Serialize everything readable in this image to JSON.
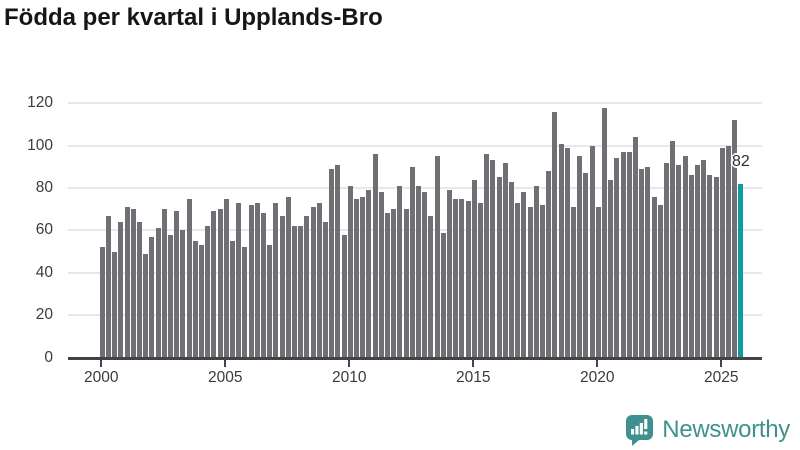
{
  "title": "Födda per kvartal i Upplands-Bro",
  "chart_data": {
    "type": "bar",
    "title": "Födda per kvartal i Upplands-Bro",
    "x_start": "2000-Q1",
    "x_end": "2025-Q4",
    "period": "quarterly",
    "x_tick_years": [
      2000,
      2005,
      2010,
      2015,
      2020,
      2025
    ],
    "x_tick_labels": [
      "2000",
      "2005",
      "2010",
      "2015",
      "2020",
      "2025"
    ],
    "y_ticks": [
      0,
      20,
      40,
      60,
      80,
      100,
      120
    ],
    "ylim": [
      0,
      120
    ],
    "grid": "horizontal",
    "legend": "none",
    "bar_color": "#706f73",
    "series": [
      {
        "name": "Födda",
        "values": [
          52,
          67,
          50,
          64,
          71,
          70,
          64,
          49,
          57,
          61,
          70,
          58,
          69,
          60,
          75,
          55,
          53,
          62,
          69,
          70,
          75,
          55,
          73,
          52,
          72,
          73,
          68,
          53,
          73,
          67,
          76,
          62,
          62,
          67,
          71,
          73,
          64,
          89,
          91,
          58,
          81,
          75,
          76,
          79,
          96,
          78,
          68,
          70,
          81,
          70,
          90,
          81,
          78,
          67,
          95,
          59,
          79,
          75,
          75,
          74,
          84,
          73,
          96,
          93,
          85,
          92,
          83,
          73,
          78,
          71,
          81,
          72,
          88,
          116,
          101,
          99,
          71,
          95,
          87,
          100,
          71,
          118,
          84,
          94,
          97,
          97,
          104,
          89,
          90,
          76,
          72,
          92,
          102,
          91,
          95,
          86,
          91,
          93,
          86,
          85,
          99,
          100,
          112,
          82
        ]
      }
    ],
    "highlight": {
      "index": 103,
      "value": 82,
      "label": "82",
      "color": "#0f9ba1"
    }
  },
  "branding": {
    "logo_text": "Newsworthy",
    "logo_color": "#3f918f",
    "logo_icon": "bar-chart-speech-bubble-icon"
  }
}
